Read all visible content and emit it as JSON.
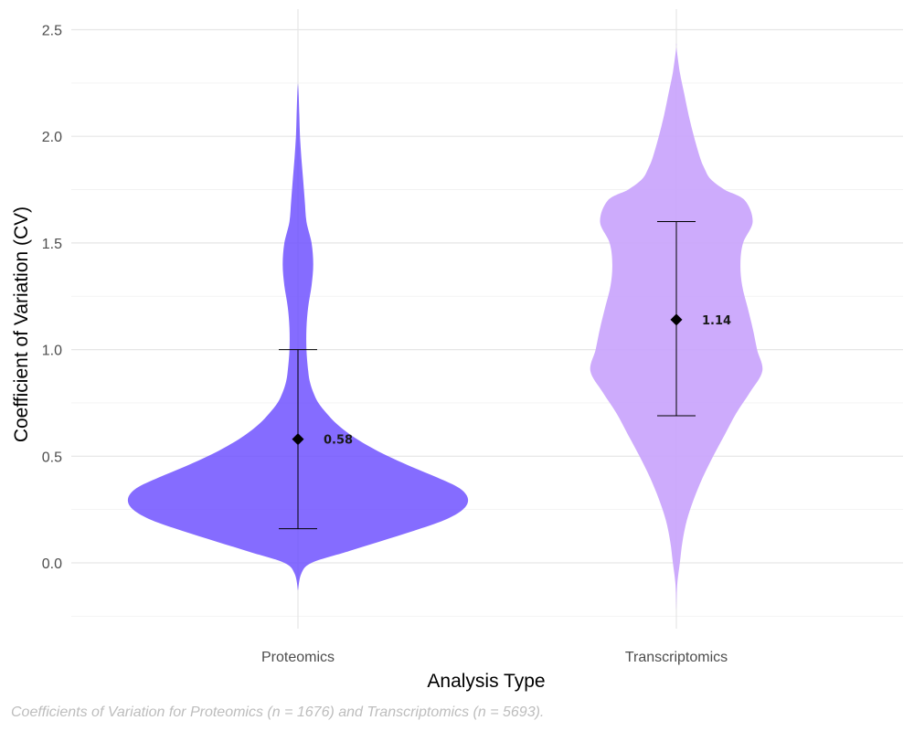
{
  "chart_data": {
    "type": "violin",
    "xlabel": "Analysis Type",
    "ylabel": "Coefficient of Variation (CV)",
    "caption": "Coefficients of Variation for Proteomics (n = 1676) and Transcriptomics (n = 5693).",
    "ylim": [
      -0.25,
      2.6
    ],
    "yticks": [
      0.0,
      0.5,
      1.0,
      1.5,
      2.0,
      2.5
    ],
    "ytick_labels": [
      "0.0",
      "0.5",
      "1.0",
      "1.5",
      "2.0",
      "2.5"
    ],
    "grid": true,
    "legend": "none",
    "groups": [
      {
        "category": "Proteomics",
        "color": "#6a4cff",
        "mean": 0.58,
        "mean_label": "0.58",
        "sd_lower": 0.16,
        "sd_upper": 1.0,
        "range": [
          -0.13,
          2.25
        ],
        "density": [
          [
            -0.13,
            0.0
          ],
          [
            -0.05,
            0.02
          ],
          [
            0.0,
            0.08
          ],
          [
            0.05,
            0.28
          ],
          [
            0.1,
            0.48
          ],
          [
            0.15,
            0.68
          ],
          [
            0.2,
            0.86
          ],
          [
            0.25,
            0.97
          ],
          [
            0.3,
            1.0
          ],
          [
            0.35,
            0.95
          ],
          [
            0.4,
            0.82
          ],
          [
            0.45,
            0.67
          ],
          [
            0.5,
            0.53
          ],
          [
            0.55,
            0.41
          ],
          [
            0.6,
            0.31
          ],
          [
            0.65,
            0.23
          ],
          [
            0.7,
            0.17
          ],
          [
            0.75,
            0.12
          ],
          [
            0.8,
            0.09
          ],
          [
            0.85,
            0.07
          ],
          [
            0.9,
            0.06
          ],
          [
            1.0,
            0.05
          ],
          [
            1.1,
            0.05
          ],
          [
            1.2,
            0.06
          ],
          [
            1.3,
            0.08
          ],
          [
            1.4,
            0.09
          ],
          [
            1.5,
            0.08
          ],
          [
            1.6,
            0.05
          ],
          [
            1.7,
            0.04
          ],
          [
            1.8,
            0.03
          ],
          [
            1.9,
            0.02
          ],
          [
            2.0,
            0.012
          ],
          [
            2.1,
            0.008
          ],
          [
            2.2,
            0.004
          ],
          [
            2.25,
            0.0
          ]
        ]
      },
      {
        "category": "Transcriptomics",
        "color": "#c9a4fc",
        "mean": 1.14,
        "mean_label": "1.14",
        "sd_lower": 0.69,
        "sd_upper": 1.6,
        "range": [
          -0.22,
          2.42
        ],
        "density": [
          [
            -0.22,
            0.0
          ],
          [
            -0.1,
            0.01
          ],
          [
            0.0,
            0.04
          ],
          [
            0.1,
            0.07
          ],
          [
            0.2,
            0.12
          ],
          [
            0.3,
            0.2
          ],
          [
            0.4,
            0.3
          ],
          [
            0.5,
            0.42
          ],
          [
            0.6,
            0.55
          ],
          [
            0.7,
            0.68
          ],
          [
            0.8,
            0.84
          ],
          [
            0.9,
            0.98
          ],
          [
            1.0,
            0.92
          ],
          [
            1.1,
            0.87
          ],
          [
            1.2,
            0.81
          ],
          [
            1.3,
            0.75
          ],
          [
            1.4,
            0.73
          ],
          [
            1.5,
            0.76
          ],
          [
            1.6,
            0.87
          ],
          [
            1.7,
            0.78
          ],
          [
            1.75,
            0.55
          ],
          [
            1.8,
            0.39
          ],
          [
            1.85,
            0.32
          ],
          [
            1.9,
            0.27
          ],
          [
            2.0,
            0.2
          ],
          [
            2.1,
            0.14
          ],
          [
            2.2,
            0.09
          ],
          [
            2.3,
            0.04
          ],
          [
            2.42,
            0.0
          ]
        ]
      }
    ]
  }
}
